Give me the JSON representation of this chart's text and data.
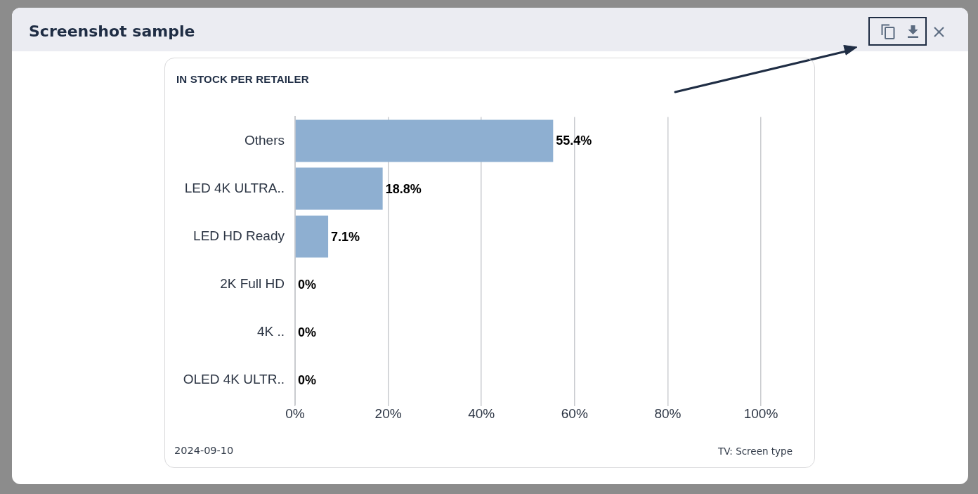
{
  "chart_data": {
    "type": "bar",
    "orientation": "horizontal",
    "title": "Screenshot sample",
    "subtitle": "IN STOCK PER RETAILER",
    "categories": [
      "Others",
      "LED 4K ULTRA..",
      "LED HD Ready",
      "2K Full HD",
      "4K ..",
      "OLED 4K ULTR.."
    ],
    "values": [
      55.4,
      18.8,
      7.1,
      0,
      0,
      0
    ],
    "value_labels": [
      "55.4%",
      "18.8%",
      "7.1%",
      "0%",
      "0%",
      "0%"
    ],
    "color": "#8eafd1",
    "xlim": [
      0,
      100
    ],
    "xticks": [
      {
        "value": 0,
        "label": "0%"
      },
      {
        "value": 20,
        "label": "20%"
      },
      {
        "value": 40,
        "label": "40%"
      },
      {
        "value": 60,
        "label": "60%"
      },
      {
        "value": 80,
        "label": "80%"
      },
      {
        "value": 100,
        "label": "100%"
      }
    ],
    "grid": "x",
    "annotations": [
      "2024-09-10",
      "TV: Screen type"
    ]
  }
}
